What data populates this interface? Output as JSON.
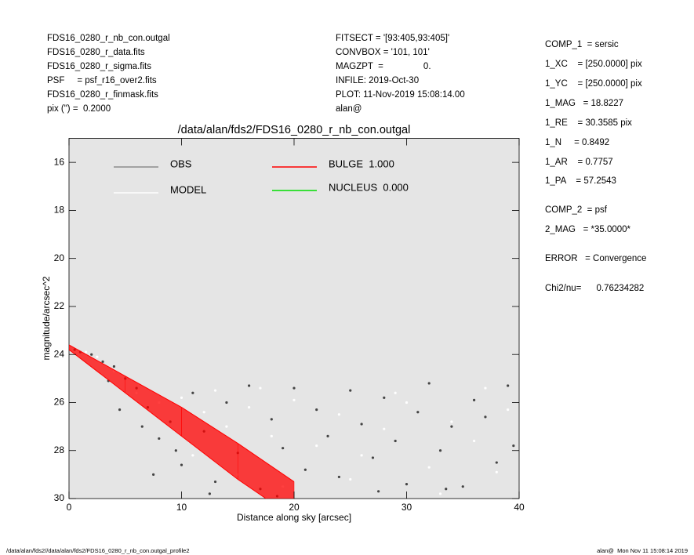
{
  "header": {
    "left": [
      "FDS16_0280_r_nb_con.outgal",
      "FDS16_0280_r_data.fits",
      "FDS16_0280_r_sigma.fits",
      "PSF     = psf_r16_over2.fits",
      "FDS16_0280_r_finmask.fits",
      "pix (\") =  0.2000"
    ],
    "middle": [
      "FITSECT = '[93:405,93:405]'",
      "CONVBOX = '101, 101'",
      "MAGZPT  =                0.",
      "INFILE: 2019-Oct-30",
      "PLOT: 11-Nov-2019 15:08:14.00",
      "alan@"
    ]
  },
  "side": [
    "COMP_1  = sersic",
    "1_XC    = [250.0000] pix",
    "1_YC    = [250.0000] pix",
    "1_MAG   = 18.8227",
    "1_RE    = 30.3585 pix",
    "1_N     = 0.8492",
    "1_AR    = 0.7757",
    "1_PA    = 57.2543",
    "COMP_2  = psf",
    "2_MAG   = *35.0000*",
    "ERROR   = Convergence",
    "Chi2/nu=      0.76234282"
  ],
  "footer": {
    "left": "/data/alan/fds2//data/alan/fds2/FDS16_0280_r_nb_con.outgal_profile2",
    "right": "alan@  Mon Nov 11 15:08:14 2019"
  },
  "chart_data": {
    "type": "scatter",
    "title": "/data/alan/fds2/FDS16_0280_r_nb_con.outgal",
    "x_label": "Distance along sky [arcsec]",
    "y_label": "magnitude/arcsec^2",
    "xlim": [
      0,
      40
    ],
    "xticks": [
      0,
      10,
      20,
      30,
      40
    ],
    "ylim": [
      30,
      15
    ],
    "yticks": [
      16,
      18,
      20,
      22,
      24,
      26,
      28,
      30
    ],
    "background": "#e5e5e5",
    "series": [
      {
        "name": "OBS",
        "color": "#444444",
        "legend_color": "#8c8c8c",
        "x": [
          0.5,
          1,
          2,
          3,
          4,
          5,
          6,
          7,
          8,
          9,
          10,
          11,
          12,
          13,
          14,
          15,
          16,
          17,
          18,
          19,
          20,
          21,
          22,
          23,
          24,
          25,
          26,
          27,
          28,
          29,
          30,
          31,
          32,
          33,
          34,
          35,
          36,
          37,
          38,
          39,
          39.5,
          12.5,
          18.5,
          27.5,
          33.5,
          6.5,
          9.5,
          4.5,
          3.5,
          7.5
        ],
        "values": [
          23.8,
          23.9,
          24.0,
          24.3,
          24.5,
          25.0,
          25.4,
          26.2,
          27.5,
          26.8,
          28.6,
          25.6,
          27.2,
          29.3,
          26.0,
          28.1,
          25.3,
          29.6,
          26.7,
          27.9,
          25.4,
          28.8,
          26.3,
          27.4,
          29.1,
          25.5,
          26.9,
          28.3,
          25.8,
          27.6,
          29.4,
          26.4,
          25.2,
          28.0,
          27.0,
          29.5,
          25.9,
          26.6,
          28.5,
          25.3,
          27.8,
          29.8,
          29.9,
          29.7,
          29.6,
          27.0,
          28.0,
          26.3,
          25.1,
          29.0
        ]
      },
      {
        "name": "MODEL",
        "color": "#ffffff",
        "x": [
          1.5,
          2.5,
          4,
          6,
          8,
          10,
          12,
          14,
          16,
          18,
          20,
          22,
          24,
          26,
          28,
          30,
          32,
          34,
          36,
          38,
          11,
          15,
          19,
          25,
          29,
          33,
          37,
          39,
          13,
          17
        ],
        "values": [
          23.9,
          24.1,
          24.7,
          25.6,
          26.0,
          25.8,
          26.4,
          27.0,
          26.2,
          27.4,
          25.9,
          27.8,
          26.5,
          28.2,
          27.1,
          26.0,
          28.7,
          26.8,
          27.6,
          28.9,
          28.2,
          29.0,
          29.5,
          29.2,
          25.6,
          29.8,
          25.4,
          26.3,
          25.5,
          25.4
        ]
      },
      {
        "name": "BULGE  1.000",
        "color": "#ff0000",
        "type": "band",
        "x": [
          0,
          5,
          10,
          15,
          20
        ],
        "values": [
          23.6,
          24.9,
          26.2,
          27.7,
          29.3
        ],
        "values_faint": [
          23.8,
          25.6,
          27.4,
          29.2,
          30.8
        ]
      },
      {
        "name": "NUCLEUS  0.000",
        "color": "#00dd00",
        "x": [],
        "values": []
      }
    ]
  }
}
